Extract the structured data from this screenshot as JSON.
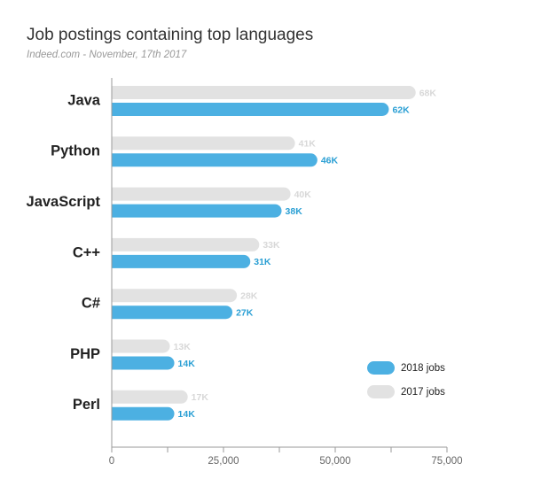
{
  "chart_data": {
    "type": "hbar",
    "title": "Job postings containing top languages",
    "subtitle": "Indeed.com - November, 17th 2017",
    "categories": [
      "Java",
      "Python",
      "JavaScript",
      "C++",
      "C#",
      "PHP",
      "Perl"
    ],
    "series": [
      {
        "name": "2017 jobs",
        "color": "#e2e2e2",
        "label_color": "#d8d8d8",
        "values": [
          68000,
          41000,
          40000,
          33000,
          28000,
          13000,
          17000
        ],
        "value_labels": [
          "68K",
          "41K",
          "40K",
          "33K",
          "28K",
          "13K",
          "17K"
        ]
      },
      {
        "name": "2018 jobs",
        "color": "#4cb0e2",
        "label_color": "#2a9fd4",
        "values": [
          62000,
          46000,
          38000,
          31000,
          27000,
          14000,
          14000
        ],
        "value_labels": [
          "62K",
          "46K",
          "38K",
          "31K",
          "27K",
          "14K",
          "14K"
        ]
      }
    ],
    "legend_order": [
      1,
      0
    ],
    "xlim": [
      0,
      75000
    ],
    "xticks": [
      0,
      {
        "value": 25000,
        "label": "25,000"
      },
      {
        "value": 50000,
        "label": "50,000"
      },
      {
        "value": 75000,
        "label": "75,000"
      }
    ],
    "xminorticks": [
      12500,
      37500,
      62500
    ]
  }
}
